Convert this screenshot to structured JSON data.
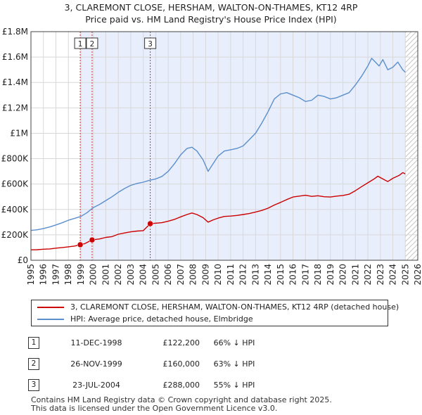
{
  "title_line1": "3, CLAREMONT CLOSE, HERSHAM, WALTON-ON-THAMES, KT12 4RP",
  "title_line2": "Price paid vs. HM Land Registry's House Price Index (HPI)",
  "legend": {
    "property": "3, CLAREMONT CLOSE, HERSHAM, WALTON-ON-THAMES, KT12 4RP (detached house)",
    "hpi": "HPI: Average price, detached house, Elmbridge"
  },
  "colors": {
    "property": "#cc0000",
    "hpi": "#5b8fcc",
    "shade": "#e8eefc",
    "hatch": "#b8b8b8",
    "marker_line": "#cc0000",
    "grid": "#d8d8d8"
  },
  "sales": [
    {
      "num": "1",
      "date": "11-DEC-1998",
      "price": "£122,200",
      "hpi": "66% ↓ HPI"
    },
    {
      "num": "2",
      "date": "26-NOV-1999",
      "price": "£160,000",
      "hpi": "63% ↓ HPI"
    },
    {
      "num": "3",
      "date": "23-JUL-2004",
      "price": "£288,000",
      "hpi": "55% ↓ HPI"
    }
  ],
  "footer": {
    "line1": "Contains HM Land Registry data © Crown copyright and database right 2025.",
    "line2": "This data is licensed under the Open Government Licence v3.0."
  },
  "chart_data": {
    "type": "line",
    "title": "3, CLAREMONT CLOSE, HERSHAM, WALTON-ON-THAMES, KT12 4RP — Price paid vs. HM Land Registry's House Price Index (HPI)",
    "xlabel": "",
    "ylabel": "",
    "xlim": [
      1995,
      2026
    ],
    "ylim": [
      0,
      1800000
    ],
    "x_ticks": [
      1995,
      1996,
      1997,
      1998,
      1999,
      2000,
      2001,
      2002,
      2003,
      2004,
      2005,
      2006,
      2007,
      2008,
      2009,
      2010,
      2011,
      2012,
      2013,
      2014,
      2015,
      2016,
      2017,
      2018,
      2019,
      2020,
      2021,
      2022,
      2023,
      2024,
      2025,
      2026
    ],
    "y_ticks": [
      {
        "value": 0,
        "label": "£0"
      },
      {
        "value": 200000,
        "label": "£200K"
      },
      {
        "value": 400000,
        "label": "£400K"
      },
      {
        "value": 600000,
        "label": "£600K"
      },
      {
        "value": 800000,
        "label": "£800K"
      },
      {
        "value": 1000000,
        "label": "£1M"
      },
      {
        "value": 1200000,
        "label": "£1.2M"
      },
      {
        "value": 1400000,
        "label": "£1.4M"
      },
      {
        "value": 1600000,
        "label": "£1.6M"
      },
      {
        "value": 1800000,
        "label": "£1.8M"
      }
    ],
    "grid": true,
    "shaded_from_year": 1998.95,
    "future_hatch_from_year": 2025.0,
    "series": [
      {
        "name": "3, CLAREMONT CLOSE, HERSHAM, WALTON-ON-THAMES, KT12 4RP (detached house)",
        "x": [
          1995.0,
          1995.5,
          1996.0,
          1996.5,
          1997.0,
          1997.5,
          1998.0,
          1998.5,
          1998.95,
          1999.3,
          1999.9,
          2000.5,
          2001.0,
          2001.5,
          2002.0,
          2002.5,
          2003.0,
          2003.5,
          2004.0,
          2004.56,
          2005.0,
          2005.5,
          2006.0,
          2006.5,
          2007.0,
          2007.5,
          2007.9,
          2008.3,
          2008.8,
          2009.2,
          2009.6,
          2010.0,
          2010.5,
          2011.0,
          2011.5,
          2012.0,
          2012.5,
          2013.0,
          2013.5,
          2014.0,
          2014.5,
          2015.0,
          2015.5,
          2016.0,
          2016.5,
          2017.0,
          2017.5,
          2018.0,
          2018.5,
          2019.0,
          2019.5,
          2020.0,
          2020.5,
          2021.0,
          2021.5,
          2022.0,
          2022.5,
          2022.8,
          2023.2,
          2023.6,
          2024.0,
          2024.5,
          2024.8,
          2025.0
        ],
        "y": [
          82000,
          83000,
          87000,
          89000,
          95000,
          100000,
          106000,
          112000,
          122200,
          130000,
          160000,
          168000,
          180000,
          186000,
          205000,
          215000,
          224000,
          230000,
          233000,
          288000,
          292000,
          296000,
          308000,
          322000,
          342000,
          360000,
          372000,
          360000,
          335000,
          300000,
          318000,
          332000,
          345000,
          348000,
          353000,
          360000,
          368000,
          380000,
          392000,
          410000,
          435000,
          455000,
          478000,
          498000,
          505000,
          512000,
          503000,
          508000,
          500000,
          498000,
          505000,
          510000,
          520000,
          548000,
          580000,
          610000,
          640000,
          662000,
          640000,
          620000,
          645000,
          668000,
          690000,
          680000
        ]
      },
      {
        "name": "HPI: Average price, detached house, Elmbridge",
        "x": [
          1995.0,
          1995.5,
          1996.0,
          1996.5,
          1997.0,
          1997.5,
          1998.0,
          1998.5,
          1999.0,
          1999.5,
          2000.0,
          2000.5,
          2001.0,
          2001.5,
          2002.0,
          2002.5,
          2003.0,
          2003.5,
          2004.0,
          2004.5,
          2005.0,
          2005.5,
          2006.0,
          2006.5,
          2007.0,
          2007.5,
          2007.9,
          2008.3,
          2008.8,
          2009.2,
          2009.6,
          2010.0,
          2010.5,
          2011.0,
          2011.5,
          2012.0,
          2012.5,
          2013.0,
          2013.5,
          2014.0,
          2014.5,
          2015.0,
          2015.5,
          2016.0,
          2016.5,
          2017.0,
          2017.5,
          2018.0,
          2018.5,
          2019.0,
          2019.5,
          2020.0,
          2020.5,
          2021.0,
          2021.5,
          2022.0,
          2022.3,
          2022.6,
          2022.9,
          2023.2,
          2023.6,
          2024.0,
          2024.4,
          2024.8,
          2025.0
        ],
        "y": [
          235000,
          240000,
          250000,
          262000,
          278000,
          295000,
          315000,
          330000,
          345000,
          375000,
          415000,
          440000,
          470000,
          500000,
          535000,
          565000,
          590000,
          605000,
          615000,
          630000,
          640000,
          660000,
          700000,
          760000,
          830000,
          880000,
          890000,
          860000,
          790000,
          700000,
          760000,
          820000,
          860000,
          870000,
          880000,
          900000,
          950000,
          1000000,
          1080000,
          1170000,
          1270000,
          1310000,
          1320000,
          1300000,
          1280000,
          1250000,
          1260000,
          1300000,
          1290000,
          1270000,
          1280000,
          1300000,
          1320000,
          1380000,
          1450000,
          1530000,
          1590000,
          1560000,
          1530000,
          1580000,
          1500000,
          1520000,
          1560000,
          1500000,
          1480000
        ]
      }
    ],
    "sale_markers": [
      {
        "label": "1",
        "year": 1998.95,
        "price": 122200
      },
      {
        "label": "2",
        "year": 1999.9,
        "price": 160000
      },
      {
        "label": "3",
        "year": 2004.56,
        "price": 288000
      }
    ]
  }
}
